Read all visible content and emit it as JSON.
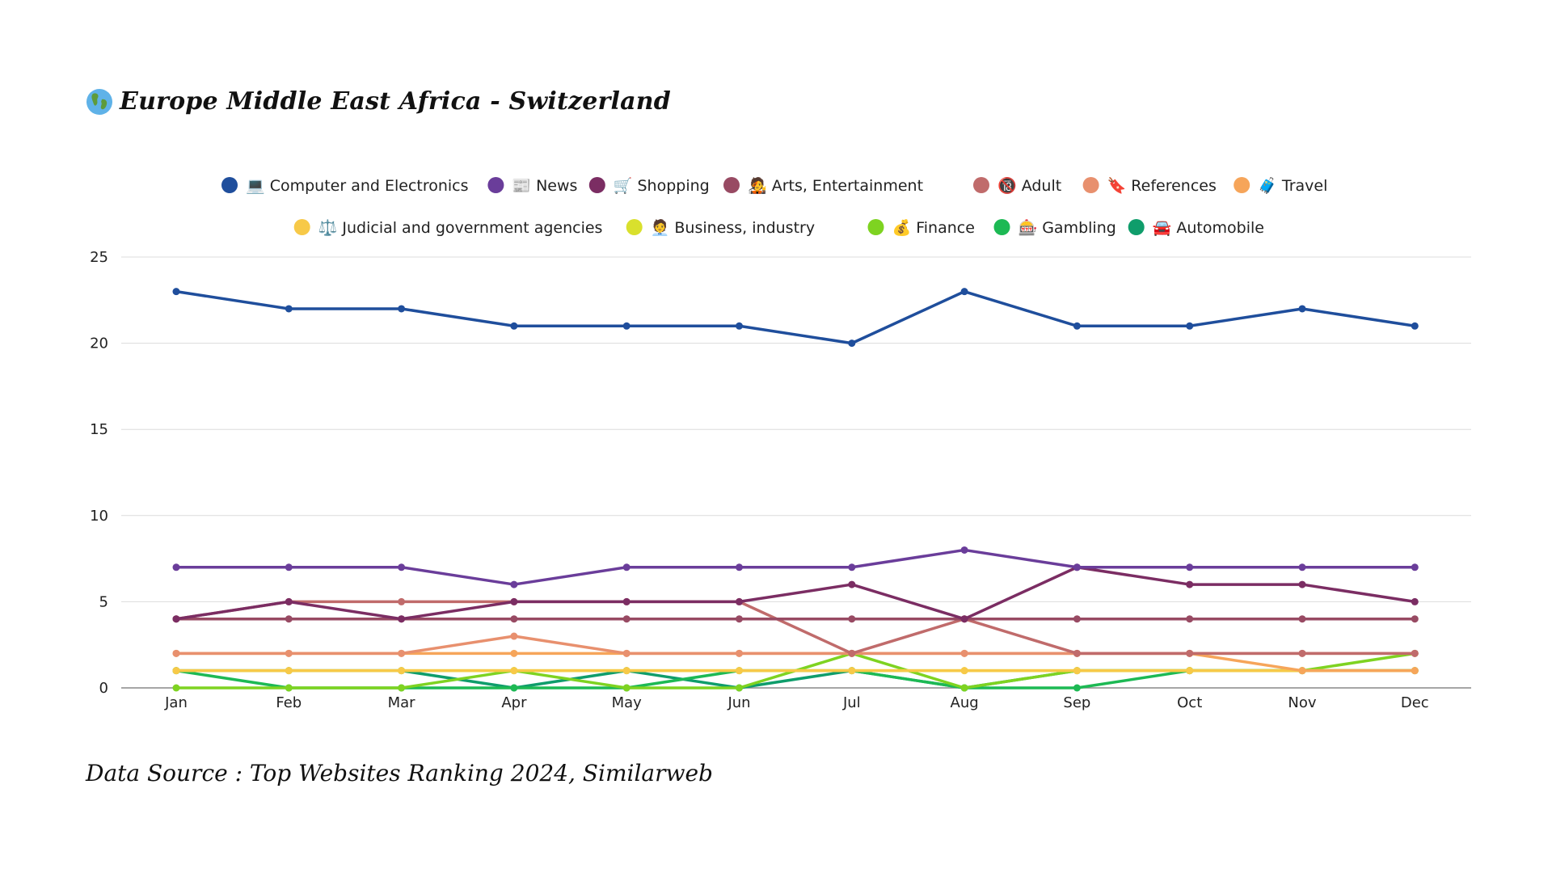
{
  "page": {
    "title": "Europe Middle East Africa - Switzerland",
    "source": "Data Source : Top Websites Ranking 2024, Similarweb"
  },
  "chart_data": {
    "type": "line",
    "title": "Europe Middle East Africa - Switzerland",
    "xlabel": "",
    "ylabel": "",
    "ylim": [
      0,
      25
    ],
    "yticks": [
      0,
      5,
      10,
      15,
      20,
      25
    ],
    "grid": true,
    "legend_position": "top-center",
    "categories": [
      "Jan",
      "Feb",
      "Mar",
      "Apr",
      "May",
      "Jun",
      "Jul",
      "Aug",
      "Sep",
      "Oct",
      "Nov",
      "Dec"
    ],
    "series": [
      {
        "name": "💻 Computer and Electronics",
        "icon": "laptop-icon",
        "color": "#1f4e9c",
        "values": [
          23,
          22,
          22,
          21,
          21,
          21,
          20,
          23,
          21,
          21,
          22,
          21
        ]
      },
      {
        "name": "📰 News",
        "icon": "newspaper-icon",
        "color": "#6a3d9a",
        "values": [
          7,
          7,
          7,
          6,
          7,
          7,
          7,
          8,
          7,
          7,
          7,
          7
        ]
      },
      {
        "name": "🛒 Shopping",
        "icon": "cart-icon",
        "color": "#7b2d63",
        "values": [
          4,
          5,
          4,
          5,
          5,
          5,
          6,
          4,
          7,
          6,
          6,
          5
        ]
      },
      {
        "name": "🧑‍🎤 Arts, Entertainment",
        "icon": "artist-icon",
        "color": "#984a63",
        "values": [
          4,
          4,
          4,
          4,
          4,
          4,
          4,
          4,
          4,
          4,
          4,
          4
        ]
      },
      {
        "name": "🔞 Adult",
        "icon": "adult-icon",
        "color": "#c06b6b",
        "values": [
          4,
          5,
          5,
          5,
          5,
          5,
          2,
          4,
          2,
          2,
          2,
          2
        ]
      },
      {
        "name": "🔖 References",
        "icon": "bookmark-icon",
        "color": "#e8906e",
        "values": [
          2,
          2,
          2,
          3,
          2,
          2,
          2,
          2,
          2,
          2,
          2,
          2
        ]
      },
      {
        "name": "🧳 Travel",
        "icon": "luggage-icon",
        "color": "#f6a55a",
        "values": [
          2,
          2,
          2,
          2,
          2,
          2,
          2,
          2,
          2,
          2,
          1,
          1
        ]
      },
      {
        "name": "⚖️ Judicial and government agencies",
        "icon": "scales-icon",
        "color": "#f7c948",
        "values": [
          1,
          1,
          1,
          1,
          1,
          1,
          1,
          1,
          1,
          1,
          1,
          1
        ]
      },
      {
        "name": "🧑‍💼 Business, industry",
        "icon": "businessperson-icon",
        "color": "#d9e02d",
        "values": [
          1,
          1,
          1,
          1,
          1,
          1,
          1,
          1,
          1,
          1,
          1,
          1
        ]
      },
      {
        "name": "💰 Finance",
        "icon": "moneybag-icon",
        "color": "#7ed321",
        "values": [
          0,
          0,
          0,
          1,
          0,
          0,
          2,
          0,
          1,
          1,
          1,
          2
        ]
      },
      {
        "name": "🎰 Gambling",
        "icon": "slot-machine-icon",
        "color": "#1db954",
        "values": [
          1,
          0,
          0,
          0,
          0,
          1,
          1,
          0,
          0,
          1,
          1,
          1
        ]
      },
      {
        "name": "🚘 Automobile",
        "icon": "car-icon",
        "color": "#0f9d6b",
        "values": [
          1,
          1,
          1,
          0,
          1,
          0,
          1,
          0,
          1,
          1,
          1,
          1
        ]
      }
    ]
  }
}
